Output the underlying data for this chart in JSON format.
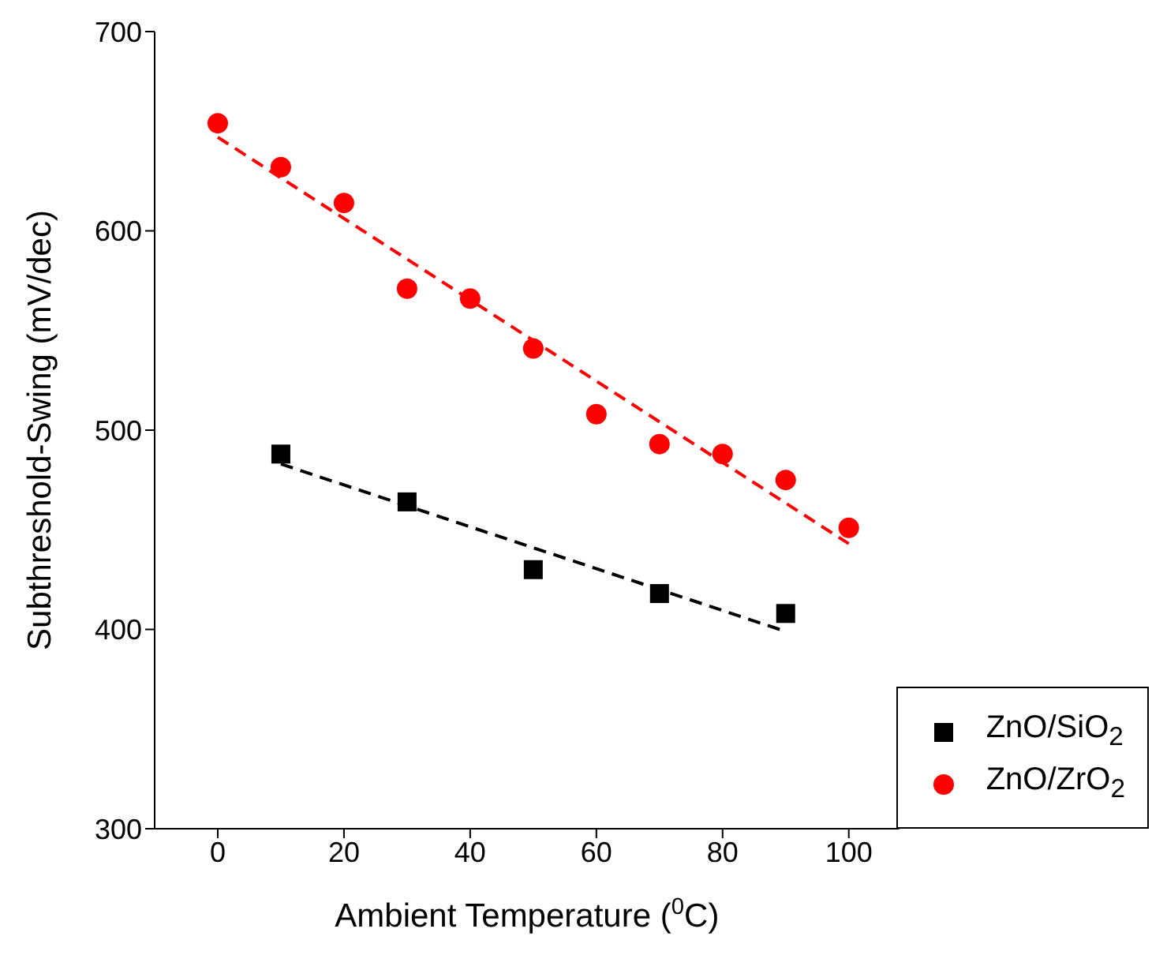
{
  "chart_data": {
    "type": "scatter",
    "xlabel": "Ambient Temperature ($^{0}$C)",
    "ylabel": "Subthreshold-Swing (mV/dec)",
    "xlim": [
      -10,
      108
    ],
    "xticks": [
      0,
      20,
      40,
      60,
      80,
      100
    ],
    "ylim": [
      300,
      700
    ],
    "yticks": [
      300,
      400,
      500,
      600,
      700
    ],
    "grid": false,
    "legend": "bottom right",
    "series": [
      {
        "name": "ZnO/SiO$_{2}$",
        "marker": "square",
        "color": "#000000",
        "x": [
          10,
          30,
          50,
          70,
          90
        ],
        "values": [
          488,
          464,
          430,
          418,
          408
        ]
      },
      {
        "name": "ZnO/ZrO$_{2}$",
        "marker": "circle",
        "color": "#ff0000",
        "x": [
          0,
          10,
          20,
          30,
          40,
          50,
          60,
          70,
          80,
          90,
          100
        ],
        "values": [
          654,
          632,
          614,
          571,
          566,
          541,
          508,
          493,
          488,
          475,
          451
        ]
      },
      {
        "type": "line",
        "line_style": "dashed",
        "marker": "none",
        "color": "#000000",
        "x": [
          10,
          90
        ],
        "values": [
          483,
          399
        ]
      },
      {
        "type": "line",
        "line_style": "dashed",
        "marker": "none",
        "color": "#ff0000",
        "x": [
          0,
          100
        ],
        "values": [
          647,
          443
        ]
      }
    ]
  }
}
